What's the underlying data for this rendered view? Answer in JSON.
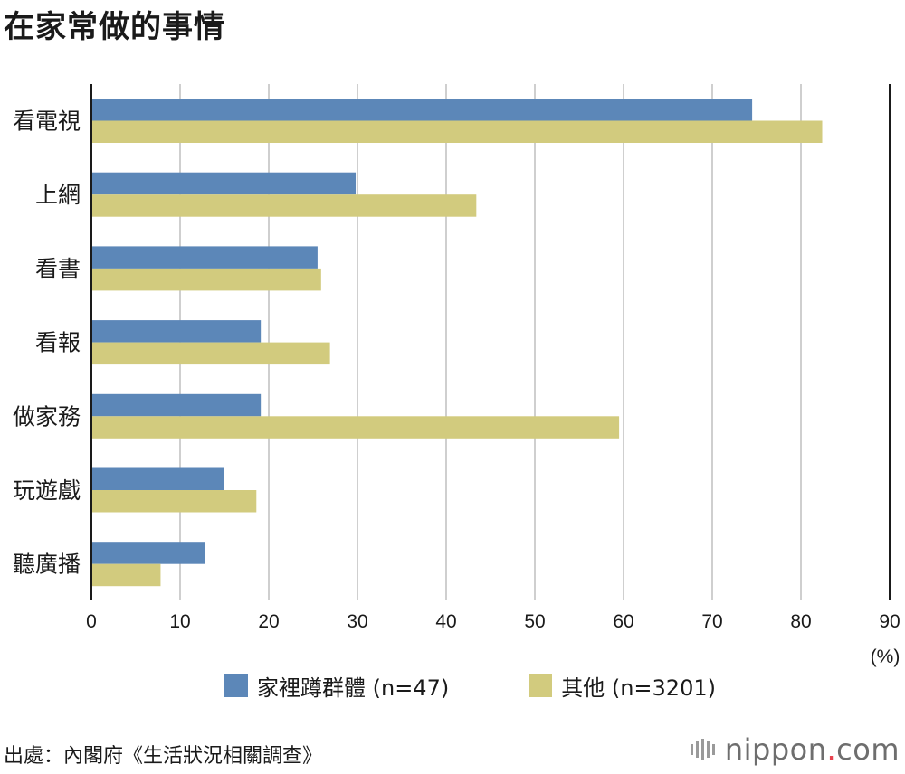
{
  "title": "在家常做的事情",
  "chart_data": {
    "type": "bar",
    "orientation": "horizontal",
    "title": "在家常做的事情",
    "categories": [
      "看電視",
      "上網",
      "看書",
      "看報",
      "做家務",
      "玩遊戲",
      "聽廣播"
    ],
    "series": [
      {
        "name": "家裡蹲群體 (n=47)",
        "color": "#5c87b8",
        "values": [
          74.5,
          29.8,
          25.5,
          19.1,
          19.1,
          14.9,
          12.8
        ]
      },
      {
        "name": "其他 (n=3201)",
        "color": "#d2cb7e",
        "values": [
          82.4,
          43.4,
          25.9,
          26.9,
          59.5,
          18.6,
          7.8
        ]
      }
    ],
    "xlim": [
      0,
      90
    ],
    "xticks": [
      0,
      10,
      20,
      30,
      40,
      50,
      60,
      70,
      80,
      90
    ],
    "xunit": "(%)",
    "grid": true,
    "legend_position": "bottom"
  },
  "source": "出處：內閣府《生活狀況相關調查》",
  "brand": {
    "name": "nippon",
    "dot": ".",
    "suffix": "com"
  }
}
